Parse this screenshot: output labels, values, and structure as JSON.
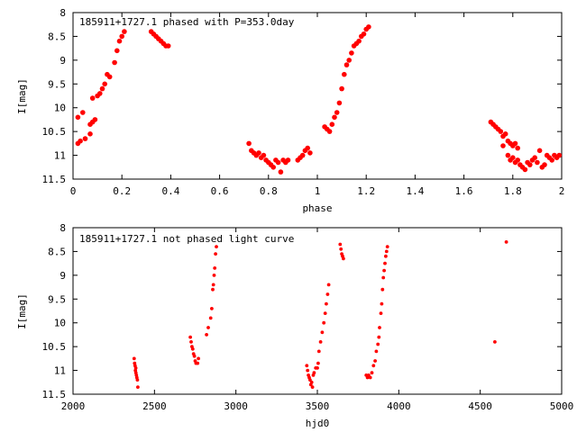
{
  "chart_data": [
    {
      "type": "scatter",
      "title": "185911+1727.1 phased with P=353.0day",
      "xlabel": "phase",
      "ylabel": "I[mag]",
      "xlim": [
        0,
        2
      ],
      "ylim": [
        8,
        11.5
      ],
      "y_inverted": true,
      "grid": false,
      "marker_color": "#ff0000",
      "x_ticks": [
        "0",
        "0.2",
        "0.4",
        "0.6",
        "0.8",
        "1",
        "1.2",
        "1.4",
        "1.6",
        "1.8",
        "2"
      ],
      "y_ticks": [
        "8",
        "8.5",
        "9",
        "9.5",
        "10",
        "10.5",
        "11",
        "11.5"
      ],
      "series": [
        {
          "points": [
            [
              0.02,
              10.75
            ],
            [
              0.03,
              10.7
            ],
            [
              0.05,
              10.65
            ],
            [
              0.07,
              10.55
            ],
            [
              0.02,
              10.2
            ],
            [
              0.04,
              10.1
            ],
            [
              0.07,
              10.35
            ],
            [
              0.08,
              10.3
            ],
            [
              0.09,
              10.25
            ],
            [
              0.08,
              9.8
            ],
            [
              0.1,
              9.75
            ],
            [
              0.11,
              9.7
            ],
            [
              0.12,
              9.6
            ],
            [
              0.13,
              9.5
            ],
            [
              0.14,
              9.3
            ],
            [
              0.15,
              9.35
            ],
            [
              0.17,
              9.05
            ],
            [
              0.18,
              8.8
            ],
            [
              0.19,
              8.6
            ],
            [
              0.2,
              8.5
            ],
            [
              0.21,
              8.4
            ],
            [
              0.32,
              8.4
            ],
            [
              0.33,
              8.45
            ],
            [
              0.34,
              8.5
            ],
            [
              0.35,
              8.55
            ],
            [
              0.36,
              8.6
            ],
            [
              0.37,
              8.65
            ],
            [
              0.38,
              8.7
            ],
            [
              0.39,
              8.7
            ],
            [
              0.72,
              10.75
            ],
            [
              0.73,
              10.9
            ],
            [
              0.74,
              10.95
            ],
            [
              0.75,
              11.0
            ],
            [
              0.76,
              10.95
            ],
            [
              0.77,
              11.05
            ],
            [
              0.78,
              11.0
            ],
            [
              0.79,
              11.1
            ],
            [
              0.8,
              11.15
            ],
            [
              0.81,
              11.2
            ],
            [
              0.82,
              11.25
            ],
            [
              0.83,
              11.1
            ],
            [
              0.84,
              11.15
            ],
            [
              0.85,
              11.35
            ],
            [
              0.86,
              11.1
            ],
            [
              0.87,
              11.15
            ],
            [
              0.88,
              11.1
            ],
            [
              0.92,
              11.1
            ],
            [
              0.93,
              11.05
            ],
            [
              0.94,
              11.0
            ],
            [
              0.95,
              10.9
            ],
            [
              0.96,
              10.85
            ],
            [
              0.97,
              10.95
            ],
            [
              1.03,
              10.4
            ],
            [
              1.04,
              10.45
            ],
            [
              1.05,
              10.5
            ],
            [
              1.06,
              10.35
            ],
            [
              1.07,
              10.2
            ],
            [
              1.08,
              10.1
            ],
            [
              1.09,
              9.9
            ],
            [
              1.1,
              9.6
            ],
            [
              1.11,
              9.3
            ],
            [
              1.12,
              9.1
            ],
            [
              1.13,
              9.0
            ],
            [
              1.14,
              8.85
            ],
            [
              1.15,
              8.7
            ],
            [
              1.16,
              8.65
            ],
            [
              1.17,
              8.6
            ],
            [
              1.18,
              8.5
            ],
            [
              1.19,
              8.45
            ],
            [
              1.2,
              8.35
            ],
            [
              1.21,
              8.3
            ],
            [
              1.71,
              10.3
            ],
            [
              1.72,
              10.35
            ],
            [
              1.73,
              10.4
            ],
            [
              1.74,
              10.45
            ],
            [
              1.75,
              10.5
            ],
            [
              1.76,
              10.6
            ],
            [
              1.77,
              10.55
            ],
            [
              1.78,
              10.7
            ],
            [
              1.79,
              10.75
            ],
            [
              1.8,
              10.8
            ],
            [
              1.81,
              10.75
            ],
            [
              1.82,
              10.85
            ],
            [
              1.76,
              10.8
            ],
            [
              1.78,
              11.0
            ],
            [
              1.79,
              11.1
            ],
            [
              1.8,
              11.05
            ],
            [
              1.81,
              11.15
            ],
            [
              1.82,
              11.1
            ],
            [
              1.83,
              11.2
            ],
            [
              1.84,
              11.25
            ],
            [
              1.85,
              11.3
            ],
            [
              1.86,
              11.15
            ],
            [
              1.87,
              11.2
            ],
            [
              1.88,
              11.1
            ],
            [
              1.89,
              11.05
            ],
            [
              1.9,
              11.15
            ],
            [
              1.91,
              10.9
            ],
            [
              1.92,
              11.25
            ],
            [
              1.93,
              11.2
            ],
            [
              1.94,
              11.0
            ],
            [
              1.95,
              11.05
            ],
            [
              1.96,
              11.1
            ],
            [
              1.97,
              11.0
            ],
            [
              1.98,
              11.05
            ],
            [
              1.99,
              11.0
            ]
          ]
        }
      ]
    },
    {
      "type": "scatter",
      "title": "185911+1727.1 not phased light curve",
      "xlabel": "hjd0",
      "ylabel": "I[mag]",
      "xlim": [
        2000,
        5000
      ],
      "ylim": [
        8,
        11.5
      ],
      "y_inverted": true,
      "grid": false,
      "marker_color": "#ff0000",
      "x_ticks": [
        "2000",
        "2500",
        "3000",
        "3500",
        "4000",
        "4500",
        "5000"
      ],
      "y_ticks": [
        "8",
        "8.5",
        "9",
        "9.5",
        "10",
        "10.5",
        "11",
        "11.5"
      ],
      "series": [
        {
          "points": [
            [
              2375,
              10.75
            ],
            [
              2378,
              10.85
            ],
            [
              2381,
              10.9
            ],
            [
              2383,
              11.0
            ],
            [
              2386,
              11.05
            ],
            [
              2389,
              11.1
            ],
            [
              2392,
              11.15
            ],
            [
              2395,
              11.2
            ],
            [
              2398,
              11.35
            ],
            [
              2385,
              10.95
            ],
            [
              2720,
              10.3
            ],
            [
              2725,
              10.4
            ],
            [
              2730,
              10.5
            ],
            [
              2735,
              10.55
            ],
            [
              2740,
              10.65
            ],
            [
              2745,
              10.7
            ],
            [
              2750,
              10.8
            ],
            [
              2755,
              10.85
            ],
            [
              2765,
              10.85
            ],
            [
              2770,
              10.75
            ],
            [
              2820,
              10.25
            ],
            [
              2830,
              10.1
            ],
            [
              2845,
              9.9
            ],
            [
              2852,
              9.7
            ],
            [
              2858,
              9.3
            ],
            [
              2862,
              9.2
            ],
            [
              2866,
              9.0
            ],
            [
              2870,
              8.85
            ],
            [
              2875,
              8.55
            ],
            [
              2880,
              8.4
            ],
            [
              3435,
              10.9
            ],
            [
              3440,
              11.0
            ],
            [
              3445,
              11.1
            ],
            [
              3450,
              11.15
            ],
            [
              3455,
              11.2
            ],
            [
              3460,
              11.3
            ],
            [
              3465,
              11.25
            ],
            [
              3470,
              11.35
            ],
            [
              3475,
              11.1
            ],
            [
              3480,
              11.05
            ],
            [
              3490,
              10.95
            ],
            [
              3500,
              10.95
            ],
            [
              3505,
              10.85
            ],
            [
              3510,
              10.6
            ],
            [
              3520,
              10.4
            ],
            [
              3530,
              10.2
            ],
            [
              3540,
              10.0
            ],
            [
              3548,
              9.8
            ],
            [
              3555,
              9.6
            ],
            [
              3563,
              9.4
            ],
            [
              3570,
              9.2
            ],
            [
              3640,
              8.35
            ],
            [
              3645,
              8.45
            ],
            [
              3650,
              8.55
            ],
            [
              3655,
              8.6
            ],
            [
              3660,
              8.65
            ],
            [
              3800,
              11.1
            ],
            [
              3808,
              11.15
            ],
            [
              3815,
              11.1
            ],
            [
              3825,
              11.15
            ],
            [
              3835,
              11.05
            ],
            [
              3845,
              10.9
            ],
            [
              3855,
              10.8
            ],
            [
              3862,
              10.6
            ],
            [
              3872,
              10.45
            ],
            [
              3878,
              10.3
            ],
            [
              3882,
              10.1
            ],
            [
              3890,
              9.8
            ],
            [
              3895,
              9.6
            ],
            [
              3900,
              9.3
            ],
            [
              3905,
              9.05
            ],
            [
              3910,
              8.9
            ],
            [
              3915,
              8.75
            ],
            [
              3920,
              8.6
            ],
            [
              3925,
              8.5
            ],
            [
              3930,
              8.4
            ],
            [
              4590,
              10.4
            ],
            [
              4660,
              8.3
            ]
          ]
        }
      ]
    }
  ]
}
